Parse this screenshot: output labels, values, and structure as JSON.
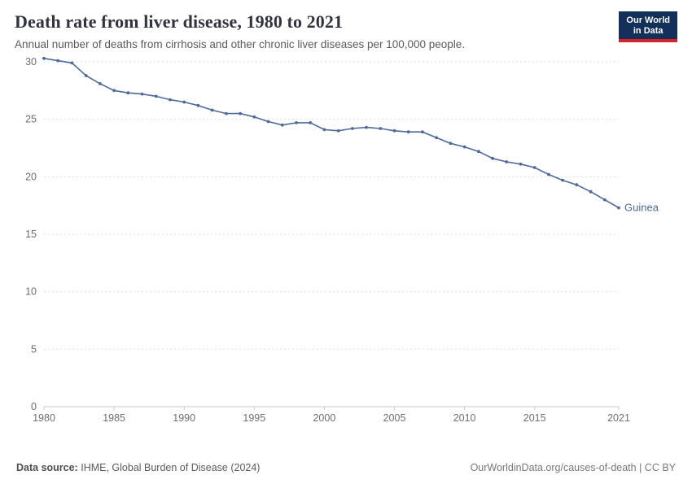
{
  "header": {
    "title": "Death rate from liver disease, 1980 to 2021",
    "subtitle": "Annual number of deaths from cirrhosis and other chronic liver diseases per 100,000 people."
  },
  "logo": {
    "line1": "Our World",
    "line2": "in Data",
    "background": "#12305a",
    "accent": "#d8232a"
  },
  "chart_data": {
    "type": "line",
    "title": "Death rate from liver disease, 1980 to 2021",
    "xlabel": "",
    "ylabel": "",
    "xlim": [
      1980,
      2021
    ],
    "ylim": [
      0,
      30
    ],
    "xticks": [
      1980,
      1985,
      1990,
      1995,
      2000,
      2005,
      2010,
      2015,
      2021
    ],
    "yticks": [
      0,
      5,
      10,
      15,
      20,
      25,
      30
    ],
    "grid": "dashed-horizontal",
    "legend_position": "end-of-line",
    "series": [
      {
        "name": "Guinea",
        "color": "#4c6a9c",
        "x": [
          1980,
          1981,
          1982,
          1983,
          1984,
          1985,
          1986,
          1987,
          1988,
          1989,
          1990,
          1991,
          1992,
          1993,
          1994,
          1995,
          1996,
          1997,
          1998,
          1999,
          2000,
          2001,
          2002,
          2003,
          2004,
          2005,
          2006,
          2007,
          2008,
          2009,
          2010,
          2011,
          2012,
          2013,
          2014,
          2015,
          2016,
          2017,
          2018,
          2019,
          2020,
          2021
        ],
        "values": [
          30.3,
          30.1,
          29.9,
          28.8,
          28.1,
          27.5,
          27.3,
          27.2,
          27.0,
          26.7,
          26.5,
          26.2,
          25.8,
          25.5,
          25.5,
          25.2,
          24.8,
          24.5,
          24.7,
          24.7,
          24.1,
          24.0,
          24.2,
          24.3,
          24.2,
          24.0,
          23.9,
          23.9,
          23.4,
          22.9,
          22.6,
          22.2,
          21.6,
          21.3,
          21.1,
          20.8,
          20.2,
          19.7,
          19.3,
          18.7,
          18.0,
          17.3
        ]
      }
    ]
  },
  "footer": {
    "datasource_label": "Data source:",
    "datasource_value": "IHME, Global Burden of Disease (2024)",
    "right_text": "OurWorldinData.org/causes-of-death | CC BY"
  }
}
